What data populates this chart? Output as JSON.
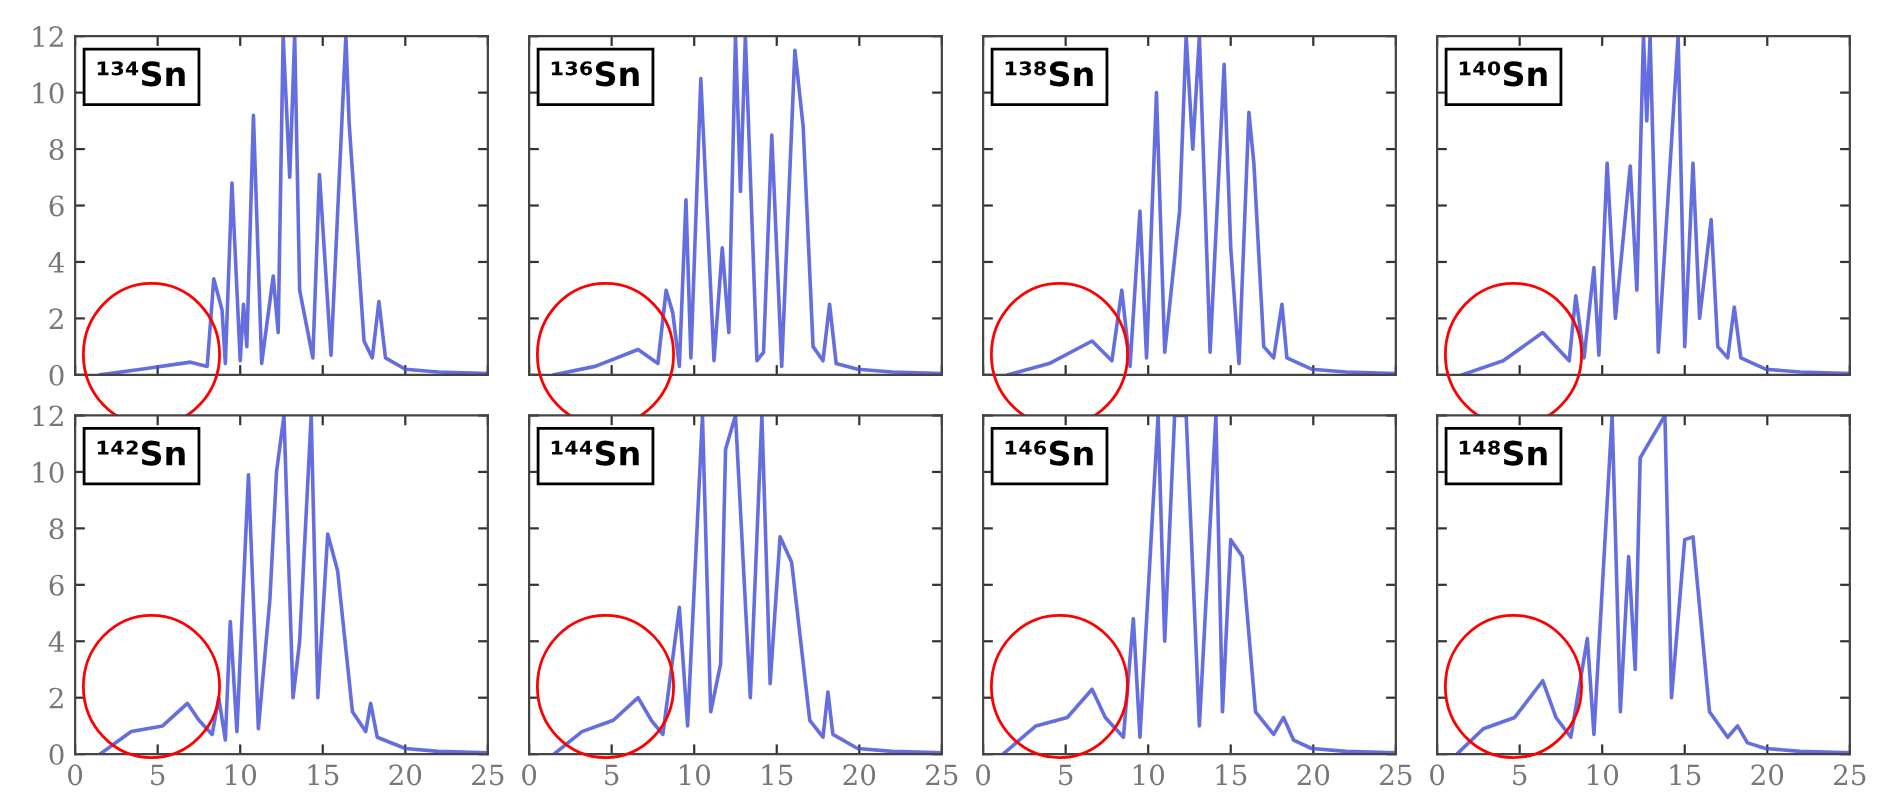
{
  "chart_data": [
    {
      "type": "line",
      "title": "¹³⁴Sn",
      "xlim": [
        0,
        25
      ],
      "ylim": [
        0,
        12
      ],
      "xticks": [
        0,
        5,
        10,
        15,
        20,
        25
      ],
      "yticks": [
        0,
        2,
        4,
        6,
        8,
        10,
        12
      ],
      "tick_labels": "y",
      "x": [
        1.5,
        4,
        7,
        8,
        8.4,
        8.9,
        9.1,
        9.5,
        10,
        10.2,
        10.4,
        10.8,
        11.3,
        12,
        12.3,
        12.6,
        13,
        13.3,
        13.6,
        14.4,
        14.8,
        15.5,
        16.4,
        16.6,
        17.5,
        18,
        18.4,
        18.8,
        20,
        22,
        25
      ],
      "series": [
        {
          "color": "#4a55d9",
          "values": [
            0,
            0.2,
            0.45,
            0.3,
            3.4,
            2.3,
            0.4,
            6.8,
            0.5,
            2.5,
            1.0,
            9.2,
            0.4,
            3.5,
            1.5,
            12,
            7,
            12,
            3,
            0.6,
            7.1,
            0.7,
            12,
            8.9,
            1.2,
            0.6,
            2.6,
            0.6,
            0.2,
            0.1,
            0.05
          ]
        }
      ]
    },
    {
      "type": "line",
      "title": "¹³⁶Sn",
      "xlim": [
        0,
        25
      ],
      "ylim": [
        0,
        12
      ],
      "xticks": [
        0,
        5,
        10,
        15,
        20,
        25
      ],
      "yticks": [
        0,
        2,
        4,
        6,
        8,
        10,
        12
      ],
      "tick_labels": false,
      "x": [
        1.5,
        4,
        6.6,
        7.8,
        8.3,
        8.7,
        9.1,
        9.5,
        9.8,
        10.4,
        11.2,
        11.7,
        12.1,
        12.5,
        12.8,
        13.1,
        13.8,
        14.2,
        14.7,
        15.3,
        16.1,
        16.6,
        17.2,
        17.8,
        18.2,
        18.6,
        19.9,
        22,
        25
      ],
      "series": [
        {
          "color": "#4a55d9",
          "values": [
            0,
            0.3,
            0.9,
            0.4,
            3.0,
            2.2,
            0.3,
            6.2,
            0.6,
            10.5,
            0.5,
            4.5,
            1.5,
            12,
            6.5,
            12,
            0.5,
            0.8,
            8.5,
            0.3,
            11.5,
            8.8,
            1.0,
            0.5,
            2.5,
            0.4,
            0.2,
            0.1,
            0.05
          ]
        }
      ]
    },
    {
      "type": "line",
      "title": "¹³⁸Sn",
      "xlim": [
        0,
        25
      ],
      "ylim": [
        0,
        12
      ],
      "xticks": [
        0,
        5,
        10,
        15,
        20,
        25
      ],
      "yticks": [
        0,
        2,
        4,
        6,
        8,
        10,
        12
      ],
      "tick_labels": false,
      "x": [
        1.5,
        4,
        6.6,
        7.8,
        8.4,
        8.9,
        9.5,
        9.9,
        10.5,
        11,
        11.9,
        12.3,
        12.7,
        13.1,
        13.75,
        14.6,
        15,
        15.5,
        16.1,
        16.4,
        17,
        17.6,
        18.1,
        18.4,
        19.9,
        22,
        25
      ],
      "series": [
        {
          "color": "#4a55d9",
          "values": [
            0,
            0.4,
            1.2,
            0.5,
            3.0,
            0.3,
            5.8,
            0.6,
            10,
            0.8,
            5.8,
            12,
            8,
            12,
            0.8,
            11,
            4.5,
            0.4,
            9.3,
            7.5,
            1.0,
            0.6,
            2.5,
            0.6,
            0.2,
            0.1,
            0.05
          ]
        }
      ]
    },
    {
      "type": "line",
      "title": "¹⁴⁰Sn",
      "xlim": [
        0,
        25
      ],
      "ylim": [
        0,
        12
      ],
      "xticks": [
        0,
        5,
        10,
        15,
        20,
        25
      ],
      "yticks": [
        0,
        2,
        4,
        6,
        8,
        10,
        12
      ],
      "tick_labels": false,
      "x": [
        1.5,
        4,
        6.4,
        8,
        8.4,
        8.9,
        9.5,
        9.8,
        10.3,
        10.8,
        11.7,
        12.1,
        12.5,
        12.7,
        12.9,
        13.4,
        14.6,
        15,
        15.5,
        15.9,
        16.6,
        17,
        17.6,
        18,
        18.4,
        19.9,
        22,
        25
      ],
      "series": [
        {
          "color": "#4a55d9",
          "values": [
            0,
            0.5,
            1.5,
            0.5,
            2.8,
            0.6,
            3.8,
            0.7,
            7.5,
            2,
            7.4,
            3,
            12,
            9,
            12,
            0.8,
            12,
            1,
            7.5,
            2,
            5.5,
            1,
            0.6,
            2.4,
            0.6,
            0.2,
            0.1,
            0.05
          ]
        }
      ]
    },
    {
      "type": "line",
      "title": "¹⁴²Sn",
      "xlim": [
        0,
        25
      ],
      "ylim": [
        0,
        12
      ],
      "xticks": [
        0,
        5,
        10,
        15,
        20,
        25
      ],
      "yticks": [
        0,
        2,
        4,
        6,
        8,
        10,
        12
      ],
      "x": [
        1.5,
        3.4,
        5.3,
        6.8,
        7.5,
        8.3,
        8.7,
        9.1,
        9.4,
        9.8,
        10.5,
        11.1,
        11.8,
        12.2,
        12.65,
        13.2,
        13.6,
        14.3,
        14.7,
        15.3,
        15.9,
        16.8,
        17.6,
        17.9,
        18.3,
        20,
        22,
        25
      ],
      "series": [
        {
          "color": "#4a55d9",
          "values": [
            0,
            0.8,
            1.0,
            1.8,
            1.2,
            0.7,
            2.0,
            0.5,
            4.7,
            0.8,
            9.9,
            0.9,
            5.5,
            10,
            12,
            2,
            4,
            12,
            2,
            7.8,
            6.5,
            1.5,
            0.8,
            1.8,
            0.6,
            0.2,
            0.1,
            0.05
          ]
        }
      ]
    },
    {
      "type": "line",
      "title": "¹⁴⁴Sn",
      "xlim": [
        0,
        25
      ],
      "ylim": [
        0,
        12
      ],
      "xticks": [
        0,
        5,
        10,
        15,
        20,
        25
      ],
      "yticks": [
        0,
        2,
        4,
        6,
        8,
        10,
        12
      ],
      "tick_labels": "x",
      "x": [
        1.5,
        3.2,
        5.1,
        6.6,
        7.4,
        8.1,
        9.1,
        9.6,
        10.5,
        11,
        11.6,
        11.9,
        12.5,
        13.4,
        14.1,
        14.6,
        15.2,
        15.9,
        17,
        17.8,
        18.1,
        18.4,
        19.9,
        22,
        25
      ],
      "series": [
        {
          "color": "#4a55d9",
          "values": [
            0,
            0.8,
            1.2,
            2.0,
            1.2,
            0.7,
            5.2,
            1.0,
            12,
            1.5,
            3.2,
            10.8,
            12,
            2,
            12,
            2.5,
            7.7,
            6.8,
            1.2,
            0.6,
            2.2,
            0.7,
            0.2,
            0.1,
            0.05
          ]
        }
      ]
    },
    {
      "type": "line",
      "title": "¹⁴⁶Sn",
      "xlim": [
        0,
        25
      ],
      "ylim": [
        0,
        12
      ],
      "xticks": [
        0,
        5,
        10,
        15,
        20,
        25
      ],
      "yticks": [
        0,
        2,
        4,
        6,
        8,
        10,
        12
      ],
      "tick_labels": "x",
      "x": [
        1.2,
        3.2,
        5.1,
        6.6,
        7.4,
        8.5,
        9.1,
        9.5,
        10.6,
        11,
        11.6,
        12.3,
        13.1,
        14.1,
        14.5,
        15,
        15.7,
        16.5,
        17.6,
        18.2,
        18.8,
        19.9,
        22,
        25
      ],
      "series": [
        {
          "color": "#4a55d9",
          "values": [
            0,
            1.0,
            1.3,
            2.3,
            1.3,
            0.6,
            4.8,
            0.6,
            12,
            4,
            12,
            12,
            1,
            12,
            1.5,
            7.6,
            7,
            1.5,
            0.7,
            1.3,
            0.5,
            0.2,
            0.1,
            0.05
          ]
        }
      ]
    },
    {
      "type": "line",
      "title": "¹⁴⁸Sn",
      "xlim": [
        0,
        25
      ],
      "ylim": [
        0,
        12
      ],
      "xticks": [
        0,
        5,
        10,
        15,
        20,
        25
      ],
      "yticks": [
        0,
        2,
        4,
        6,
        8,
        10,
        12
      ],
      "tick_labels": "x",
      "x": [
        1.2,
        2.8,
        4.7,
        6.4,
        7.2,
        8.1,
        9.1,
        9.5,
        10.6,
        11.1,
        11.6,
        12,
        12.3,
        13.8,
        14.2,
        15,
        15.5,
        16.5,
        17.6,
        18.2,
        18.8,
        19.9,
        22,
        25
      ],
      "series": [
        {
          "color": "#4a55d9",
          "values": [
            0,
            0.9,
            1.3,
            2.6,
            1.3,
            0.6,
            4.1,
            0.7,
            12,
            1.5,
            7,
            3,
            10.5,
            12,
            2,
            7.6,
            7.7,
            1.5,
            0.6,
            1.0,
            0.4,
            0.2,
            0.1,
            0.05
          ]
        }
      ]
    }
  ]
}
